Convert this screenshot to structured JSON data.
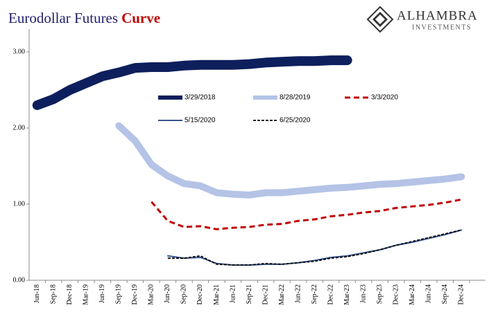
{
  "chart_data": {
    "type": "line",
    "title": [
      "Eurodollar Futures",
      "Curve"
    ],
    "logo": [
      "ALHAMBRA",
      "INVESTMENTS"
    ],
    "categories": [
      "Jun-18",
      "Sep-18",
      "Dec-18",
      "Mar-19",
      "Jun-19",
      "Sep-19",
      "Dec-19",
      "Mar-20",
      "Jun-20",
      "Sep-20",
      "Dec-20",
      "Mar-21",
      "Jun-21",
      "Sep-21",
      "Dec-21",
      "Mar-22",
      "Jun-22",
      "Sep-22",
      "Dec-22",
      "Mar-23",
      "Jun-23",
      "Sep-23",
      "Dec-23",
      "Mar-24",
      "Jun-24",
      "Sep-24",
      "Dec-24"
    ],
    "series": [
      {
        "name": "3/29/2018",
        "color": "#0d1f5c",
        "style": "solid",
        "values": [
          2.3,
          2.38,
          2.5,
          2.59,
          2.68,
          2.73,
          2.79,
          2.8,
          2.8,
          2.82,
          2.83,
          2.83,
          2.83,
          2.84,
          2.86,
          2.87,
          2.88,
          2.88,
          2.89,
          2.89,
          null,
          null,
          null,
          null,
          null,
          null,
          null
        ]
      },
      {
        "name": "8/28/2019",
        "color": "#b4c3e6",
        "style": "solid",
        "values": [
          null,
          null,
          null,
          null,
          null,
          2.03,
          1.83,
          1.52,
          1.37,
          1.27,
          1.24,
          1.15,
          1.13,
          1.12,
          1.15,
          1.15,
          1.17,
          1.19,
          1.21,
          1.22,
          1.24,
          1.26,
          1.27,
          1.29,
          1.31,
          1.33,
          1.36
        ]
      },
      {
        "name": "3/3/2020",
        "color": "#c00000",
        "style": "dashed",
        "values": [
          null,
          null,
          null,
          null,
          null,
          null,
          null,
          1.03,
          0.78,
          0.7,
          0.71,
          0.67,
          0.69,
          0.7,
          0.73,
          0.74,
          0.78,
          0.8,
          0.84,
          0.86,
          0.89,
          0.91,
          0.95,
          0.97,
          0.99,
          1.02,
          1.06
        ]
      },
      {
        "name": "5/15/2020",
        "color": "#34548f",
        "style": "solid",
        "values": [
          null,
          null,
          null,
          null,
          null,
          null,
          null,
          null,
          0.32,
          0.29,
          0.3,
          0.22,
          0.2,
          0.2,
          0.21,
          0.21,
          0.23,
          0.26,
          0.3,
          0.32,
          0.36,
          0.4,
          0.46,
          0.5,
          0.55,
          0.6,
          0.66
        ]
      },
      {
        "name": "6/25/2020",
        "color": "#000000",
        "style": "dashed",
        "values": [
          null,
          null,
          null,
          null,
          null,
          null,
          null,
          null,
          0.29,
          0.29,
          0.32,
          0.21,
          0.2,
          0.2,
          0.22,
          0.21,
          0.23,
          0.25,
          0.29,
          0.31,
          0.35,
          0.4,
          0.46,
          0.51,
          0.56,
          0.61,
          0.66
        ]
      }
    ],
    "ylim": [
      0,
      3.3
    ],
    "yticks": [
      {
        "value": 0,
        "label": "0.00"
      },
      {
        "value": 1,
        "label": "1.00"
      },
      {
        "value": 2,
        "label": "2.00"
      },
      {
        "value": 3,
        "label": "3.00"
      }
    ]
  }
}
